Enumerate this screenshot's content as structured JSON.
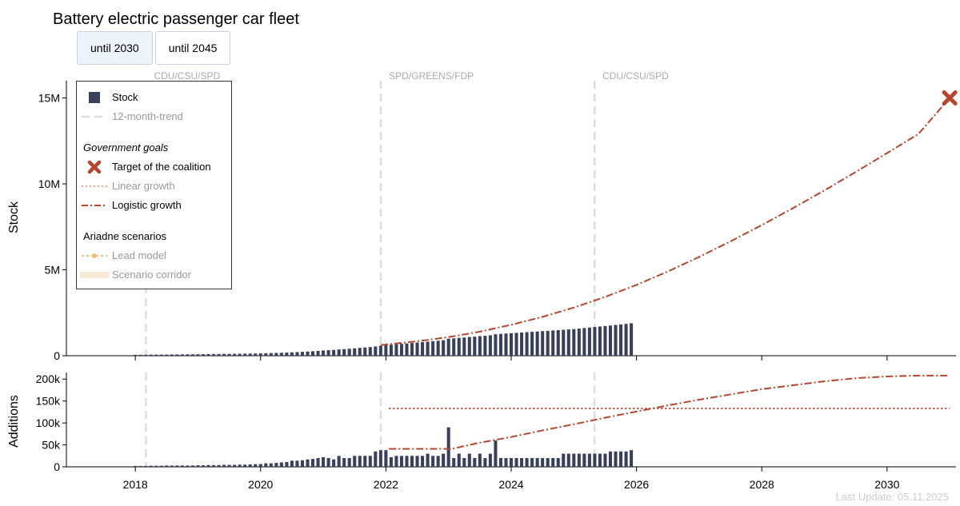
{
  "title": "Battery electric passenger car fleet",
  "tabs": [
    {
      "label": "until 2030",
      "active": true
    },
    {
      "label": "until 2045",
      "active": false
    }
  ],
  "footer": "Last Update: 05.11.2025",
  "colors": {
    "stock": "#3a3f5c",
    "trend": "#dddddd",
    "goal": "#b5452c",
    "linear": "#e8a58c",
    "lead": "#e6c27a",
    "corridor": "#f7ead6"
  },
  "legend": {
    "stock": "Stock",
    "trend": "12-month-trend",
    "gov_heading": "Government goals",
    "target": "Target of the coalition",
    "linear": "Linear growth",
    "logistic": "Logistic growth",
    "ariadne_heading": "Ariadne scenarios",
    "lead": "Lead model",
    "corridor": "Scenario corridor"
  },
  "chart_data": [
    {
      "type": "bar",
      "panel": "stock",
      "ylabel": "Stock",
      "xlim": [
        2016.9,
        2031.1
      ],
      "ylim": [
        0,
        16000000
      ],
      "yticks": [
        0,
        5000000,
        10000000,
        15000000
      ],
      "ytick_labels": [
        "0",
        "5M",
        "10M",
        "15M"
      ],
      "xticks": [
        2018,
        2020,
        2022,
        2024,
        2026,
        2028,
        2030
      ],
      "xtick_labels": [
        "2018",
        "2020",
        "2022",
        "2024",
        "2026",
        "2028",
        "2030"
      ],
      "bars": {
        "start": 2018.0,
        "step": 0.0833333,
        "values": [
          53861,
          56000,
          58000,
          60500,
          63000,
          65500,
          68500,
          71500,
          74500,
          77500,
          80500,
          83000,
          86000,
          89500,
          93000,
          96500,
          100000,
          104000,
          108000,
          112000,
          116500,
          121000,
          126000,
          131000,
          137000,
          145000,
          153000,
          162000,
          172000,
          183000,
          197000,
          211000,
          226000,
          243000,
          261000,
          281000,
          303000,
          323000,
          340000,
          365000,
          385000,
          405000,
          430000,
          455000,
          480000,
          505000,
          540000,
          580000,
          618000,
          640000,
          665000,
          690000,
          715000,
          740000,
          765000,
          790000,
          820000,
          845000,
          870000,
          900000,
          990000,
          1010000,
          1040000,
          1060000,
          1090000,
          1110000,
          1140000,
          1160000,
          1190000,
          1250000,
          1270000,
          1290000,
          1310000,
          1330000,
          1350000,
          1370000,
          1390000,
          1410000,
          1430000,
          1450000,
          1470000,
          1490000,
          1510000,
          1530000,
          1550000,
          1580000,
          1610000,
          1640000,
          1670000,
          1700000,
          1730000,
          1760000,
          1790000,
          1820000,
          1850000,
          1890000
        ]
      },
      "logistic": {
        "x": [
          2021.92,
          2022.5,
          2023,
          2023.5,
          2024,
          2024.5,
          2025,
          2025.5,
          2026,
          2026.5,
          2027,
          2027.5,
          2028,
          2028.5,
          2029,
          2029.5,
          2030,
          2030.5,
          2031
        ],
        "y": [
          620000,
          840000,
          1080000,
          1400000,
          1800000,
          2260000,
          2800000,
          3420000,
          4120000,
          4900000,
          5750000,
          6650000,
          7600000,
          8590000,
          9620000,
          10690000,
          11790000,
          12900000,
          15000000
        ]
      },
      "target": {
        "x": 2031,
        "y": 15000000
      },
      "vlines": [
        {
          "x": 2018.17,
          "label": "CDU/CSU/SPD"
        },
        {
          "x": 2021.92,
          "label": "SPD/GREENS/FDP"
        },
        {
          "x": 2025.33,
          "label": "CDU/CSU/SPD"
        }
      ]
    },
    {
      "type": "bar",
      "panel": "additions",
      "ylabel": "Additions",
      "xlim": [
        2016.9,
        2031.1
      ],
      "ylim": [
        0,
        215000
      ],
      "yticks": [
        0,
        50000,
        100000,
        150000,
        200000
      ],
      "ytick_labels": [
        "0",
        "50k",
        "100k",
        "150k",
        "200k"
      ],
      "xticks": [
        2018,
        2020,
        2022,
        2024,
        2026,
        2028,
        2030
      ],
      "xtick_labels": [
        "2018",
        "2020",
        "2022",
        "2024",
        "2026",
        "2028",
        "2030"
      ],
      "bars": {
        "start": 2018.0,
        "step": 0.0833333,
        "values": [
          2000,
          2000,
          2000,
          2500,
          2500,
          2500,
          3000,
          3000,
          3000,
          3000,
          3000,
          3000,
          3500,
          3500,
          4000,
          4000,
          4000,
          4500,
          4500,
          4500,
          5000,
          5000,
          5500,
          6000,
          6500,
          8000,
          8000,
          9000,
          10000,
          11000,
          14000,
          14000,
          15000,
          17000,
          18000,
          20000,
          22000,
          20000,
          17000,
          25000,
          20000,
          20000,
          25000,
          25000,
          25000,
          25000,
          35000,
          38000,
          38000,
          22000,
          25000,
          25000,
          25000,
          25000,
          25000,
          25000,
          30000,
          25000,
          25000,
          30000,
          90000,
          20000,
          30000,
          20000,
          30000,
          20000,
          30000,
          20000,
          30000,
          60000,
          20000,
          20000,
          20000,
          20000,
          20000,
          20000,
          20000,
          20000,
          20000,
          20000,
          20000,
          20000,
          30000,
          30000,
          30000,
          30000,
          30000,
          30000,
          30000,
          30000,
          30000,
          35000,
          35000,
          35000,
          35000,
          38000
        ]
      },
      "linear": {
        "x": [
          2022.05,
          2031
        ],
        "y": [
          133000,
          133000
        ]
      },
      "logistic": {
        "x": [
          2022.05,
          2022.5,
          2023.05,
          2023.5,
          2024,
          2024.5,
          2025,
          2025.5,
          2026,
          2026.5,
          2027,
          2027.5,
          2028,
          2028.5,
          2029,
          2029.5,
          2030,
          2030.5,
          2031
        ],
        "y": [
          41000,
          41000,
          41000,
          55000,
          68000,
          83000,
          97000,
          112000,
          126000,
          140000,
          153000,
          165000,
          177000,
          186000,
          195000,
          202000,
          206000,
          208000,
          208000
        ]
      },
      "vlines": [
        {
          "x": 2018.17
        },
        {
          "x": 2021.92
        },
        {
          "x": 2025.33
        }
      ]
    }
  ]
}
